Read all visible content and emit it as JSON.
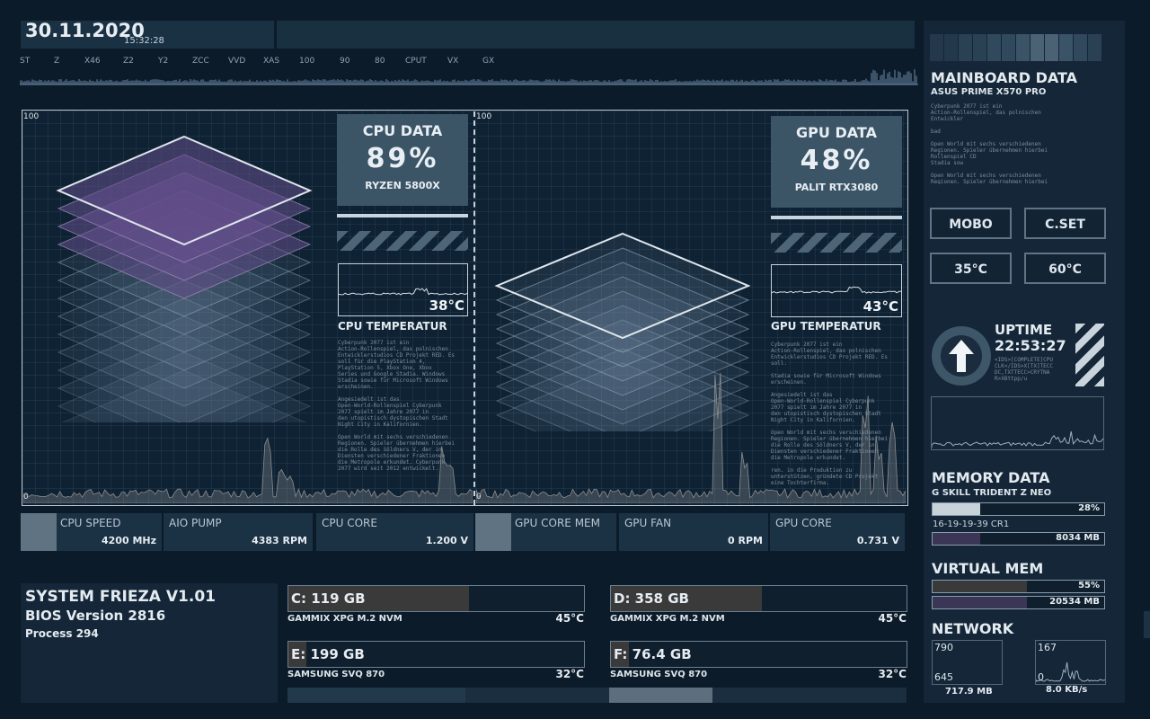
{
  "header": {
    "date": "30.11.2020",
    "time": "15:32:28",
    "ruler_labels": [
      "ST",
      "Z",
      "X46",
      "Z2",
      "Y2",
      "ZCC",
      "VVD",
      "XAS",
      "100",
      "90",
      "80",
      "CPUT",
      "VX",
      "GX"
    ]
  },
  "cpu": {
    "title": "CPU DATA",
    "load": "89%",
    "model": "RYZEN 5800X",
    "temp": "38°C",
    "temp_label": "CPU TEMPERATUR",
    "scale_top": "100",
    "scale_bottom": "0",
    "blurb": [
      "Cyberpunk 2077 ist ein",
      "Action-Rollenspiel, das polnischen",
      "Entwicklerstudios CD Projekt RED. Es",
      "soll für die PlayStation 4,",
      "PlayStation 5, Xbox One, Xbox",
      "Series und Google Stadia. Windows",
      "Stadia sowie für Microsoft Windows",
      "erscheinen.",
      "",
      "Angesiedelt ist das",
      "Open-World-Rollenspiel Cyberpunk",
      "2077 spielt im Jahre 2077 in",
      "den utopistisch dystopischen Stadt",
      "Night City in Kalifornien.",
      "",
      "Open World mit sechs verschiedenen",
      "Regionen. Spieler übernehmen hierbei",
      "die Rolle des Söldners V, der in",
      "Diensten verschiedener Fraktionen",
      "die Metropole erkundet. Cyberpunk",
      "2077 wird seit 2012 entwickelt."
    ]
  },
  "gpu": {
    "title": "GPU DATA",
    "load": "48%",
    "model": "PALIT RTX3080",
    "temp": "43°C",
    "temp_label": "GPU TEMPERATUR",
    "scale_top": "100",
    "scale_bottom": "0",
    "blurb": [
      "Cyberpunk 2077 ist ein",
      "Action-Rollenspiel, das polnischen",
      "Entwicklerstudios CD Projekt RED. Es",
      "soll.",
      "",
      "Stadia sowie für Microsoft Windows",
      "erscheinen.",
      "",
      "Angesiedelt ist das",
      "Open-World-Rollenspiel Cyberpunk",
      "2077 spielt im Jahre 2077 in",
      "den utopistisch dystopischen Stadt",
      "Night City in Kalifornien.",
      "",
      "Open World mit sechs verschiedenen",
      "Regionen. Spieler übernehmen hierbei",
      "die Rolle des Söldners V, der in",
      "Diensten verschiedener Fraktionen",
      "die Metropole erkundet.",
      "",
      "ren. in die Produktion zu",
      "unterstützen, gründete CD Projekt",
      "eine Tochterfirma."
    ]
  },
  "stats": [
    {
      "label": "CPU SPEED",
      "value": "4200 MHz"
    },
    {
      "label": "AIO PUMP",
      "value": "4383 RPM"
    },
    {
      "label": "CPU CORE",
      "value": "1.200 V"
    },
    {
      "label": "GPU CORE MEM",
      "value": ""
    },
    {
      "label": "GPU FAN",
      "value": "0 RPM"
    },
    {
      "label": "GPU CORE",
      "value": "0.731 V"
    }
  ],
  "system": {
    "name": "SYSTEM FRIEZA V1.01",
    "bios": "BIOS Version 2816",
    "process_label": "Process",
    "process_count": "294"
  },
  "drives": [
    {
      "label": "C: 119 GB",
      "model": "GAMMIX XPG M.2 NVM",
      "temp": "45°C",
      "fill": 0.61
    },
    {
      "label": "D: 358 GB",
      "model": "GAMMIX XPG M.2 NVM",
      "temp": "45°C",
      "fill": 0.51
    },
    {
      "label": "E: 199 GB",
      "model": "SAMSUNG SVQ 870",
      "temp": "32°C",
      "fill": 0.06
    },
    {
      "label": "F: 76.4 GB",
      "model": "SAMSUNG SVQ 870",
      "temp": "32°C",
      "fill": 0.06
    }
  ],
  "mainboard": {
    "title": "MAINBOARD DATA",
    "model": "ASUS PRIME X570 PRO",
    "blurb": [
      "Cyberpunk 2077 ist ein",
      "Action-Rollenspiel, das polnischen",
      "Entwickler",
      "",
      "bad",
      "",
      "Open World mit sechs verschiedenen",
      "Regionen. Spieler übernehmen hierbei",
      "Rollenspiel CD",
      "Stadia sow",
      "",
      "Open World mit sechs verschiedenen",
      "Regionen. Spieler übernehmen hierbei"
    ],
    "buttons": [
      "MOBO",
      "C.SET",
      "35°C",
      "60°C"
    ]
  },
  "uptime": {
    "label": "UPTIME",
    "value": "22:53:27",
    "blurb": [
      "<IDS>[COMPLETE]CPU",
      "CLK</IDS>X[TX]TECC",
      "DC,TXTTECC>CRYTNA",
      "R>XBttpp/u"
    ]
  },
  "memory": {
    "title": "MEMORY DATA",
    "model": "G SKILL TRIDENT Z NEO",
    "usage": "28%",
    "usage_fill": 0.28,
    "timings": "16-19-19-39 CR1",
    "size": "8034 MB"
  },
  "virtual": {
    "title": "VIRTUAL MEM",
    "usage": "55%",
    "usage_fill": 0.55,
    "size": "20534 MB"
  },
  "network": {
    "title": "NETWORK",
    "up_top": "790",
    "up_bottom": "645",
    "up_total": "717.9 MB",
    "down_top": "167",
    "down_bottom": "0",
    "down_rate": "8.0 KB/s"
  },
  "colors": {
    "background": "#0c1b29",
    "panel": "#142638",
    "accent": "#5b7d93",
    "cpu_stack": "#6a5a8c",
    "text": "#d4dde6"
  }
}
